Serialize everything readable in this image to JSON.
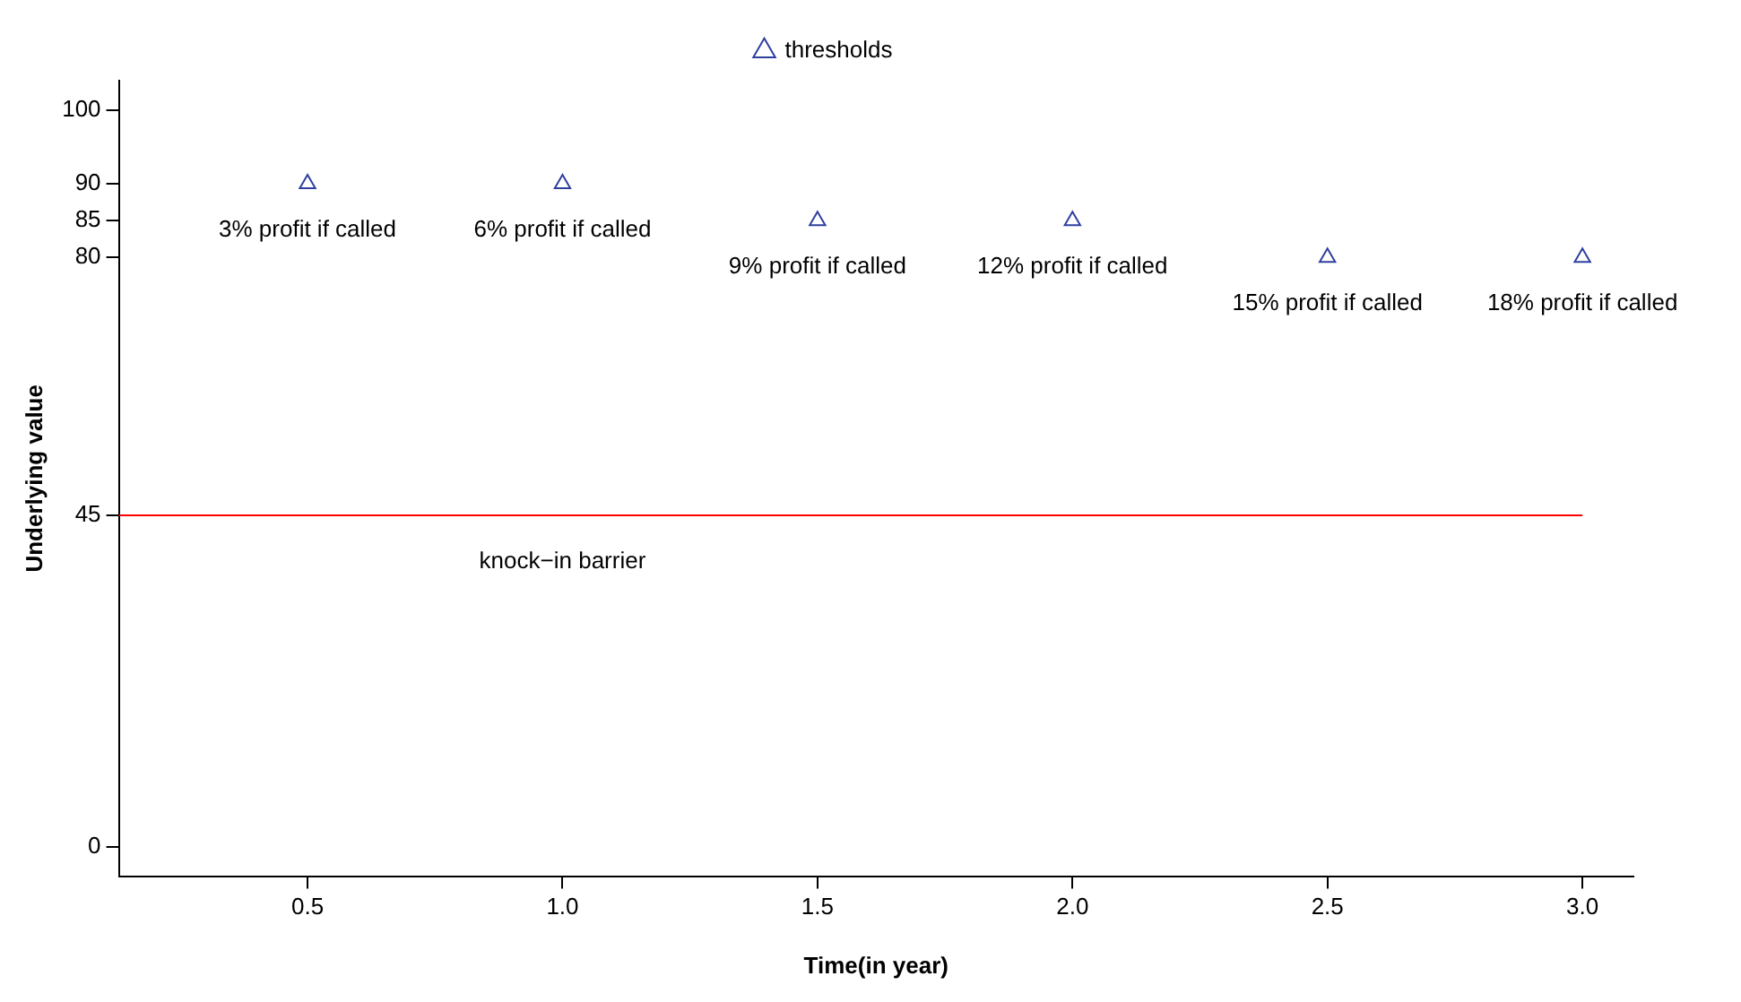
{
  "chart_data": {
    "type": "scatter",
    "xlabel": "Time(in year)",
    "ylabel": "Underlying value",
    "series": [
      {
        "name": "thresholds",
        "color": "#2f3f9f",
        "x": [
          0.5,
          1.0,
          1.5,
          2.0,
          2.5,
          3.0
        ],
        "values": [
          90,
          90,
          85,
          85,
          80,
          80
        ]
      }
    ],
    "xlim": [
      0.13,
      3.1
    ],
    "ylim": [
      -4,
      104
    ],
    "xticks": [
      0.5,
      {
        "value": 1,
        "label": "1.0"
      },
      1.5,
      {
        "value": 2,
        "label": "2.0"
      },
      2.5,
      {
        "value": 3,
        "label": "3.0"
      }
    ],
    "yticks": [
      0,
      45,
      80,
      85,
      90,
      100
    ],
    "ref_lines": [
      {
        "axis": "y",
        "value": 45,
        "color": "#ff0000"
      }
    ],
    "annotations": [
      {
        "text": "3% profit if called",
        "x": 0.5,
        "y": 90
      },
      {
        "text": "6% profit if called",
        "x": 1.0,
        "y": 90
      },
      {
        "text": "9% profit if called",
        "x": 1.5,
        "y": 85
      },
      {
        "text": "12% profit if called",
        "x": 2.0,
        "y": 85
      },
      {
        "text": "15% profit if called",
        "x": 2.5,
        "y": 80
      },
      {
        "text": "18% profit if called",
        "x": 3.0,
        "y": 80
      },
      {
        "text": "knock−in barrier",
        "x": 1.0,
        "y": 45
      }
    ],
    "marker": "triangle",
    "legend": "top",
    "grid": false
  }
}
